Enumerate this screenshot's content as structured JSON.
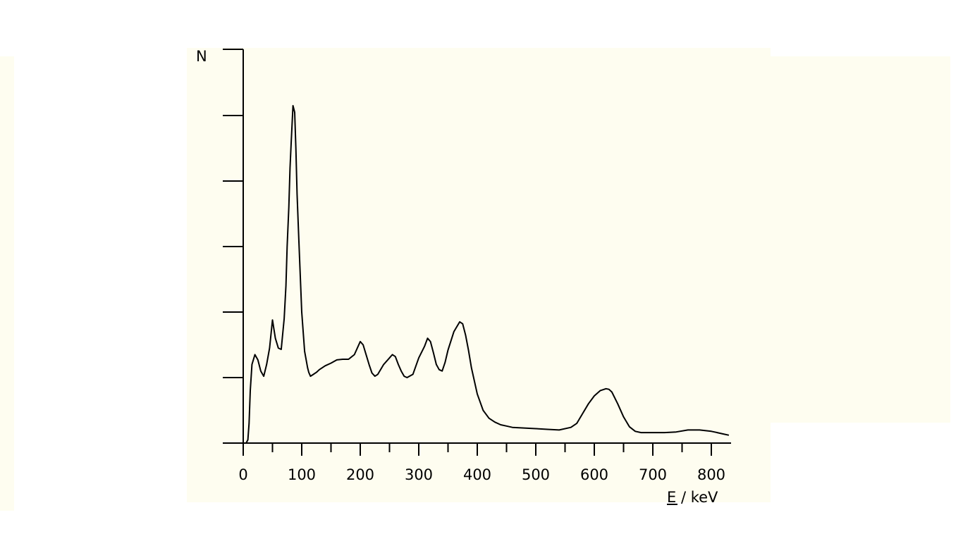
{
  "colors": {
    "background": "#fefdf0",
    "line": "#000000"
  },
  "chart_data": {
    "type": "line",
    "title": "",
    "xlabel": "E / keV",
    "ylabel": "N",
    "xlim": [
      0,
      830
    ],
    "ylim": [
      0,
      6
    ],
    "x_ticks": [
      0,
      100,
      200,
      300,
      400,
      500,
      600,
      700,
      800
    ],
    "y_ticks": [
      1,
      2,
      3,
      4,
      5
    ],
    "y_tick_labels_shown": false,
    "grid": false,
    "legend": "none",
    "series": [
      {
        "x": [
          0,
          5,
          8,
          10,
          12,
          15,
          20,
          25,
          30,
          35,
          40,
          45,
          50,
          55,
          60,
          65,
          70,
          73,
          75,
          78,
          80,
          82,
          85,
          88,
          90,
          92,
          95,
          100,
          105,
          110,
          112,
          115,
          120,
          125,
          130,
          140,
          150,
          160,
          170,
          180,
          190,
          200,
          205,
          210,
          215,
          220,
          225,
          230,
          240,
          250,
          255,
          260,
          265,
          270,
          275,
          280,
          290,
          300,
          310,
          315,
          320,
          325,
          330,
          335,
          340,
          345,
          350,
          360,
          370,
          375,
          380,
          385,
          390,
          400,
          410,
          420,
          430,
          440,
          450,
          460,
          480,
          500,
          520,
          540,
          560,
          570,
          580,
          590,
          600,
          610,
          620,
          625,
          630,
          640,
          650,
          660,
          670,
          680,
          700,
          720,
          740,
          760,
          780,
          800,
          810,
          820,
          830
        ],
        "values": [
          0.0,
          0.0,
          0.05,
          0.3,
          0.8,
          1.2,
          1.35,
          1.27,
          1.1,
          1.02,
          1.2,
          1.45,
          1.88,
          1.6,
          1.45,
          1.43,
          1.9,
          2.4,
          3.0,
          3.6,
          4.2,
          4.6,
          5.15,
          5.05,
          4.5,
          3.8,
          3.1,
          2.0,
          1.4,
          1.15,
          1.08,
          1.02,
          1.05,
          1.08,
          1.12,
          1.18,
          1.22,
          1.27,
          1.28,
          1.28,
          1.35,
          1.55,
          1.5,
          1.35,
          1.2,
          1.07,
          1.02,
          1.05,
          1.2,
          1.3,
          1.35,
          1.32,
          1.2,
          1.1,
          1.02,
          1.0,
          1.05,
          1.3,
          1.48,
          1.6,
          1.55,
          1.38,
          1.2,
          1.12,
          1.1,
          1.23,
          1.42,
          1.7,
          1.85,
          1.82,
          1.65,
          1.42,
          1.15,
          0.75,
          0.5,
          0.38,
          0.32,
          0.28,
          0.26,
          0.24,
          0.23,
          0.22,
          0.21,
          0.2,
          0.24,
          0.3,
          0.45,
          0.6,
          0.72,
          0.8,
          0.83,
          0.82,
          0.78,
          0.6,
          0.4,
          0.25,
          0.18,
          0.16,
          0.16,
          0.16,
          0.17,
          0.2,
          0.2,
          0.18,
          0.16,
          0.14,
          0.12
        ]
      }
    ]
  }
}
